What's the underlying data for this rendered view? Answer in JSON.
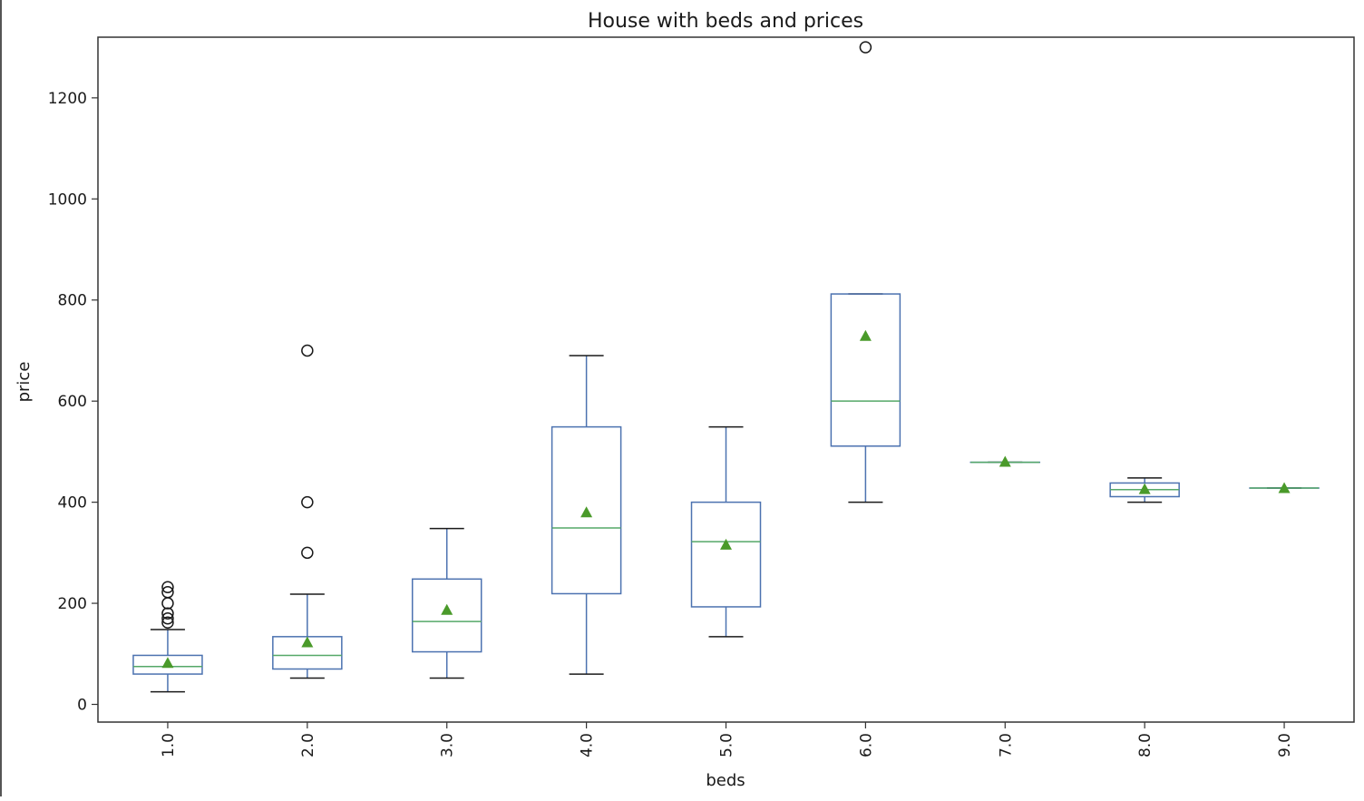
{
  "chart_data": {
    "type": "boxplot",
    "title": "House with beds and prices",
    "xlabel": "beds",
    "ylabel": "price",
    "ylim": [
      -35,
      1320
    ],
    "yticks": [
      0,
      200,
      400,
      600,
      800,
      1000,
      1200
    ],
    "categories": [
      "1.0",
      "2.0",
      "3.0",
      "4.0",
      "5.0",
      "6.0",
      "7.0",
      "8.0",
      "9.0"
    ],
    "boxes": [
      {
        "category": "1.0",
        "whisker_low": 25,
        "q1": 60,
        "median": 75,
        "q3": 97,
        "whisker_high": 148,
        "mean": 82,
        "outliers": [
          162,
          170,
          180,
          200,
          222,
          232
        ]
      },
      {
        "category": "2.0",
        "whisker_low": 52,
        "q1": 70,
        "median": 97,
        "q3": 134,
        "whisker_high": 218,
        "mean": 123,
        "outliers": [
          300,
          400,
          700
        ]
      },
      {
        "category": "3.0",
        "whisker_low": 52,
        "q1": 104,
        "median": 164,
        "q3": 248,
        "whisker_high": 348,
        "mean": 187,
        "outliers": []
      },
      {
        "category": "4.0",
        "whisker_low": 60,
        "q1": 219,
        "median": 349,
        "q3": 549,
        "whisker_high": 690,
        "mean": 380,
        "outliers": []
      },
      {
        "category": "5.0",
        "whisker_low": 134,
        "q1": 193,
        "median": 322,
        "q3": 400,
        "whisker_high": 549,
        "mean": 316,
        "outliers": []
      },
      {
        "category": "6.0",
        "whisker_low": 400,
        "q1": 511,
        "median": 600,
        "q3": 812,
        "whisker_high": 812,
        "mean": 729,
        "outliers": [
          1300
        ]
      },
      {
        "category": "7.0",
        "whisker_low": 479,
        "q1": 479,
        "median": 479,
        "q3": 479,
        "whisker_high": 479,
        "mean": 480,
        "outliers": []
      },
      {
        "category": "8.0",
        "whisker_low": 400,
        "q1": 411,
        "median": 425,
        "q3": 438,
        "whisker_high": 448,
        "mean": 426,
        "outliers": []
      },
      {
        "category": "9.0",
        "whisker_low": 428,
        "q1": 428,
        "median": 428,
        "q3": 428,
        "whisker_high": 428,
        "mean": 428,
        "outliers": []
      }
    ],
    "colors": {
      "box": "#4c72b0",
      "median": "#55a868",
      "mean": "#4a9a2a",
      "whisker_cap": "#1a1a1a",
      "outlier": "#1a1a1a"
    },
    "grid": false,
    "legend": "none"
  }
}
